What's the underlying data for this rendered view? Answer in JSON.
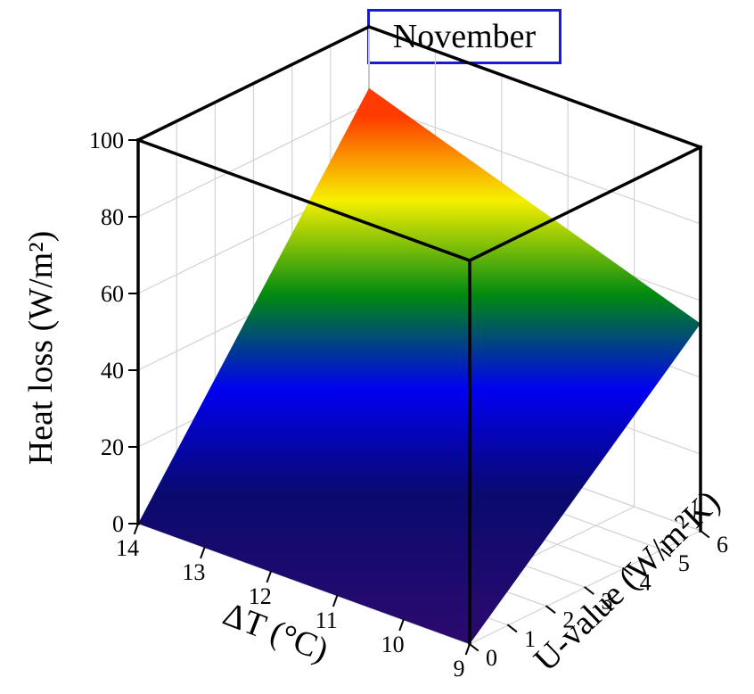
{
  "chart_data": {
    "type": "surface3d",
    "title": "November",
    "zlabel": "Heat loss (W/m²)",
    "xlabel": "ΔT (°C)",
    "ylabel": "U-value (W/m²K)",
    "x_range": [
      9,
      14
    ],
    "y_range": [
      0,
      6
    ],
    "z_range": [
      0,
      100
    ],
    "x_ticks": [
      "9",
      "10",
      "11",
      "12",
      "13",
      "14"
    ],
    "y_ticks": [
      "0",
      "1",
      "2",
      "3",
      "4",
      "5",
      "6"
    ],
    "z_ticks": [
      "0",
      "20",
      "40",
      "60",
      "80",
      "100"
    ],
    "surface_corners": [
      {
        "dT": 14,
        "U": 0,
        "heat_loss": 0
      },
      {
        "dT": 9,
        "U": 0,
        "heat_loss": 0
      },
      {
        "dT": 9,
        "U": 6,
        "heat_loss": 54
      },
      {
        "dT": 14,
        "U": 6,
        "heat_loss": 84
      }
    ],
    "colormap": [
      "#2c0a6e",
      "#0a0a7a",
      "#0000ff",
      "#008800",
      "#ffff00",
      "#ff3300"
    ],
    "grid": true
  }
}
